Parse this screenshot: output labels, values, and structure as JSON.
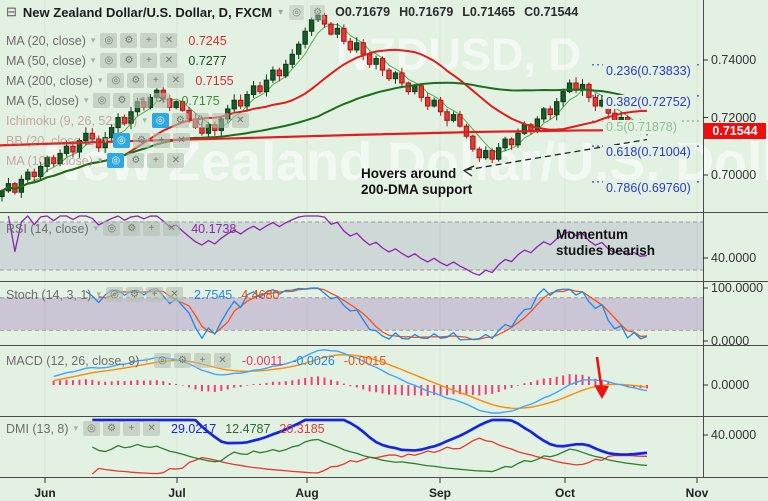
{
  "icon_glyphs": {
    "eye": "◎",
    "gear": "⚙",
    "add": "+",
    "close": "✕",
    "parens": "()",
    "caret": "▾",
    "collapse": "⊟"
  },
  "colors": {
    "bg": "#e3f1e2",
    "divider": "#4a4a4a",
    "up_body": "#1a5a28",
    "up_border": "#0c3a16",
    "down_body": "#e53935",
    "down_border": "#a31515",
    "ma5": "#4caf50",
    "ma20": "#e11d1d",
    "ma50": "#1b6e1b",
    "ma200": "#e11d1d",
    "rsi": "#8e24aa",
    "stoch_k": "#1e88e5",
    "stoch_d": "#f4511e",
    "macd": "#42a5f5",
    "macd_signal": "#fb8c00",
    "macd_hist": "#ec407a",
    "adx": "#1526e0",
    "plus_di": "#2e7d32",
    "minus_di": "#e53935",
    "fib_line": "#3344cc",
    "fib_mid": "#7cb87c",
    "badge_bg": "#ef0d0d",
    "watermark": "rgba(255,255,255,0.55)"
  },
  "header": {
    "title": "New Zealand Dollar/U.S. Dollar, D, FXCM",
    "ohlc": [
      "O0.71679",
      "H0.71679",
      "L0.71465",
      "C0.71544"
    ]
  },
  "legend_rows": [
    {
      "label": "MA (20, close)",
      "value": "0.7245",
      "value_color": "#d32f2f",
      "hidden": false,
      "icons": [
        "eye",
        "gear",
        "add",
        "close"
      ]
    },
    {
      "label": "MA (50, close)",
      "value": "0.7277",
      "value_color": "#1b4d1b",
      "hidden": false,
      "icons": [
        "eye",
        "gear",
        "add",
        "close"
      ]
    },
    {
      "label": "MA (200, close)",
      "value": "0.7155",
      "value_color": "#d32f2f",
      "hidden": false,
      "icons": [
        "eye",
        "gear",
        "add",
        "close"
      ]
    },
    {
      "label": "MA (5, close)",
      "value": "0.7175",
      "value_color": "#388e3c",
      "hidden": false,
      "icons": [
        "eye",
        "gear",
        "add",
        "close"
      ]
    },
    {
      "label": "Ichimoku (9, 26, 52, 26)",
      "value": "",
      "hidden": true,
      "icons": [
        "eye",
        "gear",
        "parens",
        "add",
        "close"
      ]
    },
    {
      "label": "BB (20, close, 2)",
      "value": "",
      "hidden": true,
      "icons": [
        "eye",
        "gear",
        "add",
        "close"
      ]
    },
    {
      "label": "MA (100, close)",
      "value": "",
      "hidden": true,
      "icons": [
        "eye",
        "gear",
        "add",
        "close"
      ]
    }
  ],
  "panels": [
    {
      "id": "rsi",
      "label": "RSI (14, close)",
      "values": [
        {
          "text": "40.1738",
          "color": "#8e24aa"
        }
      ],
      "axis": [
        {
          "text": "40.0000",
          "v": 40
        }
      ]
    },
    {
      "id": "stoch",
      "label": "Stoch (14, 3, 1)",
      "values": [
        {
          "text": "2.7545",
          "color": "#1e88e5"
        },
        {
          "text": "4.4680",
          "color": "#e64a19"
        }
      ],
      "axis": [
        {
          "text": "100.0000",
          "v": 100
        },
        {
          "text": "0.0000",
          "v": 0
        }
      ]
    },
    {
      "id": "macd",
      "label": "MACD (12, 26, close, 9)",
      "values": [
        {
          "text": "-0.0011",
          "color": "#e8346b"
        },
        {
          "text": "-0.0026",
          "color": "#1e88e5"
        },
        {
          "text": "-0.0015",
          "color": "#f4511e"
        }
      ],
      "axis": [
        {
          "text": "0.0000",
          "v": 0
        }
      ]
    },
    {
      "id": "dmi",
      "label": "DMI (13, 8)",
      "values": [
        {
          "text": "29.0217",
          "color": "#1526e0"
        },
        {
          "text": "12.4787",
          "color": "#336633"
        },
        {
          "text": "20.3185",
          "color": "#e53935"
        }
      ],
      "axis": [
        {
          "text": "40.0000",
          "v": 40
        }
      ]
    }
  ],
  "annotations": {
    "main_line1": "Hovers around",
    "main_line2": "200-DMA support",
    "rsi_line1": "Momentum",
    "rsi_line2": "studies bearish"
  },
  "watermarks": {
    "symbol": "NZDUSD, D",
    "name": "New Zealand Dollar/U.S. Dollar"
  },
  "price_axis": {
    "labels": [
      {
        "text": "0.74000",
        "price": 0.74
      },
      {
        "text": "0.72000",
        "price": 0.72
      },
      {
        "text": "0.70000",
        "price": 0.7
      }
    ],
    "current": "0.71544"
  },
  "time_axis": {
    "months": [
      "Jun",
      "Jul",
      "Aug",
      "Sep",
      "Oct",
      "Nov"
    ]
  },
  "fib_levels": [
    {
      "text": "0.236(0.73833)",
      "price": 0.73833,
      "green": false
    },
    {
      "text": "0.382(0.72752)",
      "price": 0.72752,
      "green": false
    },
    {
      "text": "0.5(0.71878)",
      "price": 0.71878,
      "green": true
    },
    {
      "text": "0.618(0.71004)",
      "price": 0.71004,
      "green": false
    },
    {
      "text": "0.786(0.69760)",
      "price": 0.6976,
      "green": false
    }
  ],
  "chart_data": {
    "type": "candlestick",
    "title": "New Zealand Dollar/U.S. Dollar, D, FXCM",
    "symbol": "NZD/USD",
    "interval": "D",
    "ohlc_current": {
      "open": 0.71679,
      "high": 0.71679,
      "low": 0.71465,
      "close": 0.71544
    },
    "price_ticks": [
      0.74,
      0.72,
      0.7
    ],
    "month_ticks_x": [
      45,
      177,
      307,
      440,
      565,
      697
    ],
    "first_open": 0.6925,
    "closes": [
      0.6945,
      0.697,
      0.694,
      0.6985,
      0.701,
      0.6995,
      0.703,
      0.706,
      0.704,
      0.7075,
      0.71,
      0.708,
      0.712,
      0.7145,
      0.7125,
      0.7095,
      0.713,
      0.7165,
      0.72,
      0.718,
      0.722,
      0.7255,
      0.7235,
      0.727,
      0.7295,
      0.7265,
      0.7235,
      0.7255,
      0.7225,
      0.7195,
      0.7165,
      0.7145,
      0.7175,
      0.7155,
      0.7195,
      0.723,
      0.726,
      0.724,
      0.728,
      0.731,
      0.729,
      0.733,
      0.7365,
      0.7345,
      0.7385,
      0.742,
      0.7455,
      0.75,
      0.754,
      0.7555,
      0.7525,
      0.749,
      0.751,
      0.7465,
      0.7435,
      0.746,
      0.742,
      0.7385,
      0.7405,
      0.7365,
      0.7335,
      0.7355,
      0.732,
      0.729,
      0.731,
      0.727,
      0.724,
      0.726,
      0.722,
      0.719,
      0.721,
      0.717,
      0.7135,
      0.709,
      0.706,
      0.7085,
      0.7055,
      0.7095,
      0.7125,
      0.7105,
      0.7145,
      0.7175,
      0.7155,
      0.7195,
      0.723,
      0.721,
      0.7255,
      0.729,
      0.732,
      0.7295,
      0.7315,
      0.727,
      0.724,
      0.726,
      0.7215,
      0.7185,
      0.72,
      0.7165,
      0.718,
      0.715,
      0.71544
    ],
    "ma200_points": [
      [
        0,
        0.7103
      ],
      [
        120,
        0.7117
      ],
      [
        240,
        0.7128
      ],
      [
        360,
        0.714
      ],
      [
        480,
        0.715
      ],
      [
        580,
        0.7155
      ],
      [
        650,
        0.7156
      ]
    ],
    "moving_averages": {
      "ma20_last": 0.7245,
      "ma50_last": 0.7277,
      "ma200_last": 0.7155,
      "ma5_last": 0.7175
    },
    "indicators": {
      "rsi_last": 40.1738,
      "stoch_k_last": 2.7545,
      "stoch_d_last": 4.468,
      "macd_hist_last": -0.0011,
      "macd_last": -0.0026,
      "macd_signal_last": -0.0015,
      "adx_last": 29.0217,
      "plus_di_last": 12.4787,
      "minus_di_last": 20.3185
    },
    "fib_retracement": [
      0.73833,
      0.72752,
      0.71878,
      0.71004,
      0.6976
    ]
  }
}
